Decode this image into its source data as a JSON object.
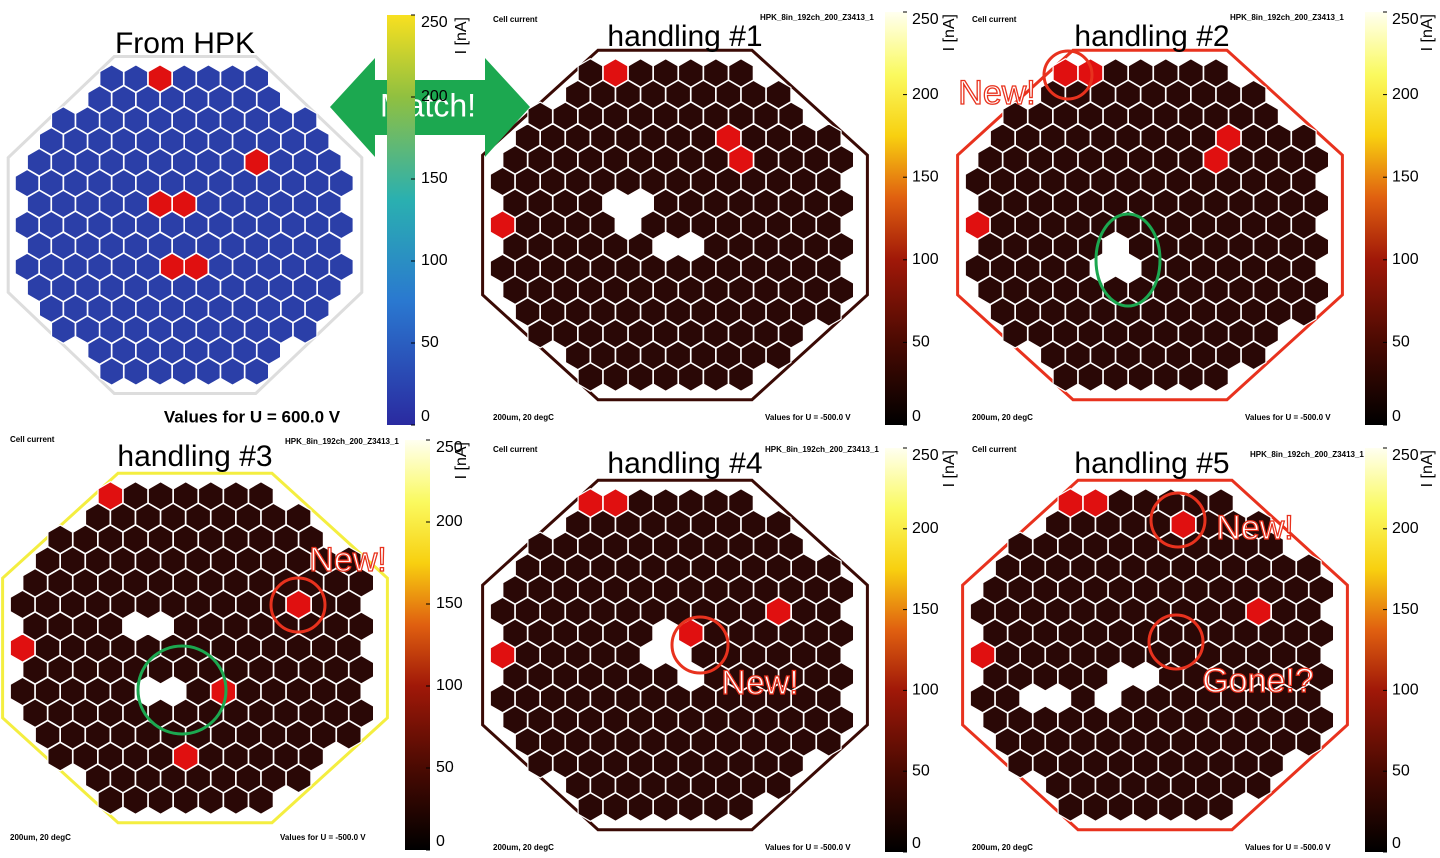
{
  "panels": [
    {
      "title": "From HPK",
      "footer": "Values for U = 600.0 V"
    },
    {
      "header": "Cell current",
      "title": "handling #1",
      "sensor": "HPK_8in_192ch_200_Z3413_1",
      "conditions": "200um, 20 degC",
      "footer": "Values for U = -500.0 V"
    },
    {
      "header": "Cell current",
      "title": "handling #2",
      "sensor": "HPK_8in_192ch_200_Z3413_1",
      "conditions": "200um, 20 degC",
      "footer": "Values for U = -500.0 V"
    },
    {
      "header": "Cell current",
      "title": "handling #3",
      "sensor": "HPK_8in_192ch_200_Z3413_1",
      "conditions": "200um, 20 degC",
      "footer": "Values for U = -500.0 V"
    },
    {
      "header": "Cell current",
      "title": "handling #4",
      "sensor": "HPK_8in_192ch_200_Z3413_1",
      "conditions": "200um, 20 degC",
      "footer": "Values for U = -500.0 V"
    },
    {
      "header": "Cell current",
      "title": "handling #5",
      "sensor": "HPK_8in_192ch_200_Z3413_1",
      "conditions": "200um, 20 degC",
      "footer": "Values for U = -500.0 V"
    }
  ],
  "colorbar": {
    "label": "I [nA]",
    "range": [
      0,
      250
    ],
    "ticks": [
      0,
      50,
      100,
      150,
      200,
      250
    ]
  },
  "annotations": {
    "match": "Match!",
    "new_2": "New!",
    "new_3": "New!",
    "new_4": "New!",
    "new_5": "New!",
    "gone_5": "Gone!?"
  }
}
